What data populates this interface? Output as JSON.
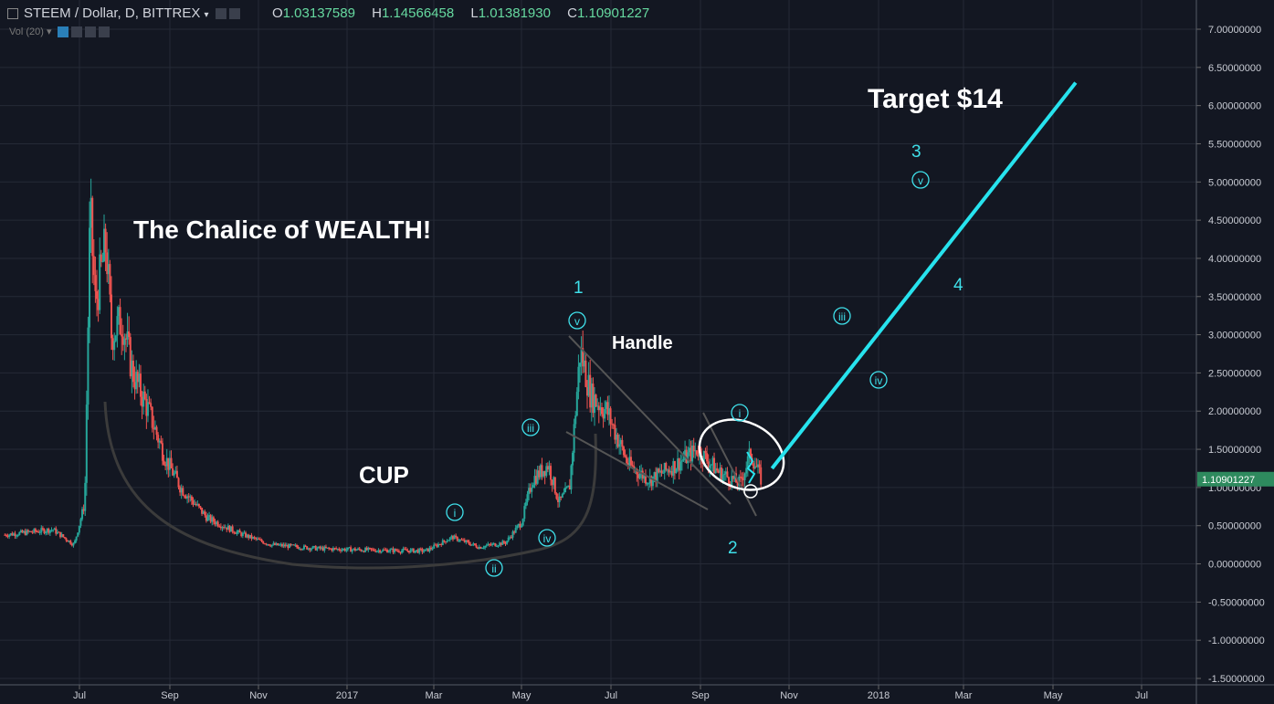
{
  "header": {
    "symbol": "STEEM / Dollar, D, BITTREX",
    "o_label": "O",
    "o": "1.03137589",
    "h_label": "H",
    "h": "1.14566458",
    "l_label": "L",
    "l": "1.01381930",
    "c_label": "C",
    "c": "1.10901227",
    "volume": "Vol (20)"
  },
  "colors": {
    "background": "#131722",
    "up": "#26a69a",
    "down": "#ef5350",
    "accent": "#27e3ee",
    "last_price": "#2e8a5e"
  },
  "annotations": {
    "title": "The Chalice of WEALTH!",
    "cup": "CUP",
    "handle": "Handle",
    "target": "Target $14"
  },
  "wave_labels": {
    "w1": "1",
    "w2": "2",
    "w3": "3",
    "w4": "4",
    "i_a": "i",
    "ii_a": "ii",
    "iii_a": "iii",
    "iv_a": "iv",
    "v_a": "v",
    "i_b": "i",
    "iii_b": "iii",
    "iv_b": "iv",
    "v_b": "v"
  },
  "chart_data": {
    "type": "candlestick",
    "y_ticks": [
      7.0,
      6.5,
      6.0,
      5.5,
      5.0,
      4.5,
      4.0,
      3.5,
      3.0,
      2.5,
      2.0,
      1.5,
      1.0,
      0.5,
      0.0,
      -0.5,
      -1.0,
      -1.5
    ],
    "y_tick_labels": [
      "7.00000000",
      "6.50000000",
      "6.00000000",
      "5.50000000",
      "5.00000000",
      "4.50000000",
      "4.00000000",
      "3.50000000",
      "3.00000000",
      "2.50000000",
      "2.00000000",
      "1.50000000",
      "1.00000000",
      "0.50000000",
      "0.00000000",
      "-0.50000000",
      "-1.00000000",
      "-1.50000000"
    ],
    "ylim": [
      -1.6,
      7.35
    ],
    "x_ticks": [
      "Jul",
      "Sep",
      "Nov",
      "2017",
      "Mar",
      "May",
      "Jul",
      "Sep",
      "Nov",
      "2018",
      "Mar",
      "May",
      "Jul"
    ],
    "last_price": 1.10901227,
    "last_price_label": "1.10901227",
    "target_line": {
      "start": [
        2017.8,
        1.25
      ],
      "end": [
        2018.37,
        6.3
      ]
    },
    "price_path": [
      [
        2016.36,
        0.38
      ],
      [
        2016.45,
        0.45
      ],
      [
        2016.49,
        0.25
      ],
      [
        2016.51,
        0.8
      ],
      [
        2016.52,
        4.6
      ],
      [
        2016.53,
        3.4
      ],
      [
        2016.55,
        4.2
      ],
      [
        2016.56,
        3.0
      ],
      [
        2016.58,
        3.2
      ],
      [
        2016.6,
        2.5
      ],
      [
        2016.63,
        2.0
      ],
      [
        2016.66,
        1.4
      ],
      [
        2016.69,
        1.0
      ],
      [
        2016.74,
        0.6
      ],
      [
        2016.8,
        0.4
      ],
      [
        2016.86,
        0.25
      ],
      [
        2016.95,
        0.2
      ],
      [
        2017.05,
        0.18
      ],
      [
        2017.15,
        0.17
      ],
      [
        2017.2,
        0.35
      ],
      [
        2017.25,
        0.22
      ],
      [
        2017.3,
        0.28
      ],
      [
        2017.33,
        0.55
      ],
      [
        2017.35,
        1.1
      ],
      [
        2017.38,
        1.3
      ],
      [
        2017.4,
        0.8
      ],
      [
        2017.42,
        1.0
      ],
      [
        2017.44,
        2.8
      ],
      [
        2017.46,
        2.2
      ],
      [
        2017.49,
        2.0
      ],
      [
        2017.53,
        1.3
      ],
      [
        2017.57,
        1.1
      ],
      [
        2017.62,
        1.3
      ],
      [
        2017.66,
        1.5
      ],
      [
        2017.7,
        1.2
      ],
      [
        2017.74,
        1.05
      ],
      [
        2017.76,
        1.45
      ],
      [
        2017.78,
        1.1
      ]
    ]
  }
}
